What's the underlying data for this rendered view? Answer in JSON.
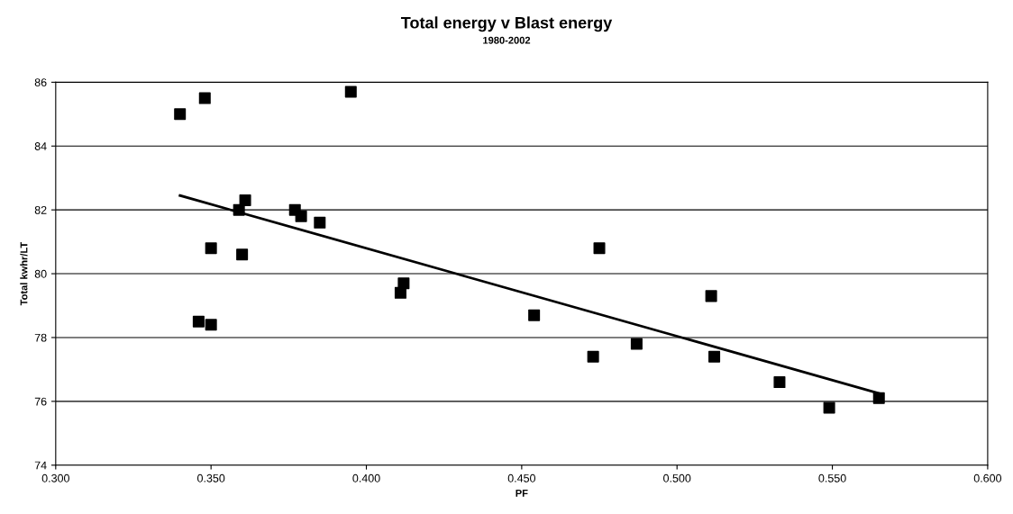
{
  "chart_data": {
    "type": "scatter",
    "title": "Total energy v Blast energy",
    "subtitle": "1980-2002",
    "xlabel": "PF",
    "ylabel": "Total kwhr/LT",
    "x": [
      0.34,
      0.348,
      0.395,
      0.361,
      0.359,
      0.377,
      0.379,
      0.385,
      0.35,
      0.36,
      0.346,
      0.35,
      0.411,
      0.412,
      0.475,
      0.454,
      0.511,
      0.473,
      0.487,
      0.512,
      0.533,
      0.549,
      0.565
    ],
    "series": [
      {
        "color": "#000000",
        "marker": "square",
        "values": [
          85.0,
          85.5,
          85.7,
          82.3,
          82.0,
          82.0,
          81.8,
          81.6,
          80.8,
          80.6,
          78.5,
          78.4,
          79.4,
          79.7,
          80.8,
          78.7,
          79.3,
          77.4,
          77.8,
          77.4,
          76.6,
          75.8,
          76.1
        ]
      },
      {
        "type": "line",
        "color": "#000000",
        "marker": "none",
        "line_style": "solid",
        "x": [
          0.34,
          0.565
        ],
        "values": [
          82.45,
          76.25
        ]
      }
    ],
    "xlim": [
      0.3,
      0.6
    ],
    "xticks": [
      {
        "value": 0.3,
        "label": "0.300"
      },
      {
        "value": 0.35,
        "label": "0.350"
      },
      {
        "value": 0.4,
        "label": "0.400"
      },
      {
        "value": 0.45,
        "label": "0.450"
      },
      {
        "value": 0.5,
        "label": "0.500"
      },
      {
        "value": 0.55,
        "label": "0.550"
      },
      {
        "value": 0.6,
        "label": "0.600"
      }
    ],
    "ylim": [
      74,
      86
    ],
    "yticks": [
      74,
      76,
      78,
      80,
      82,
      84,
      86
    ],
    "grid": "y",
    "legend": false
  }
}
